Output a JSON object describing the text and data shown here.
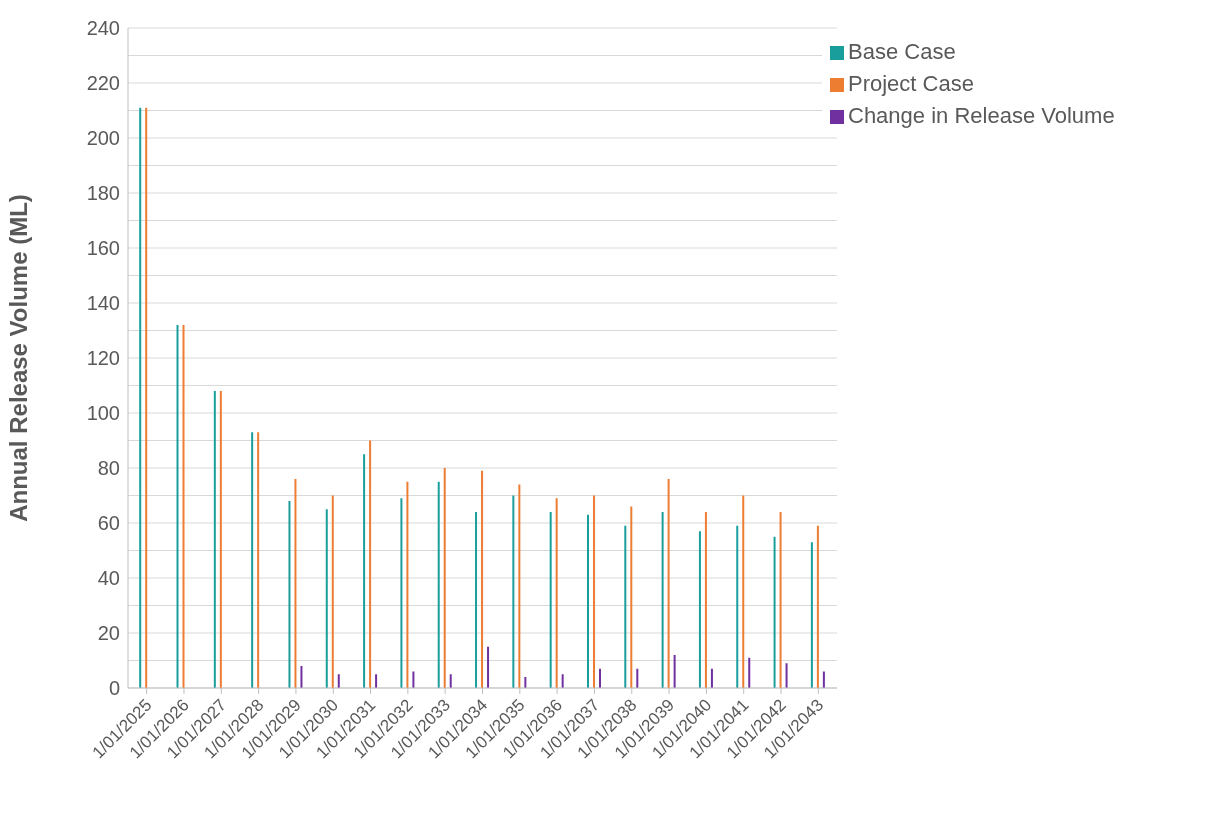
{
  "chart_data": {
    "type": "bar",
    "ylabel": "Annual Release Volume (ML)",
    "categories": [
      "1/01/2025",
      "1/01/2026",
      "1/01/2027",
      "1/01/2028",
      "1/01/2029",
      "1/01/2030",
      "1/01/2031",
      "1/01/2032",
      "1/01/2033",
      "1/01/2034",
      "1/01/2035",
      "1/01/2036",
      "1/01/2037",
      "1/01/2038",
      "1/01/2039",
      "1/01/2040",
      "1/01/2041",
      "1/01/2042",
      "1/01/2043"
    ],
    "series": [
      {
        "name": "Base Case",
        "color": "#1a9e9c",
        "values": [
          211,
          132,
          108,
          93,
          68,
          65,
          85,
          69,
          75,
          64,
          70,
          64,
          63,
          59,
          64,
          57,
          59,
          55,
          53
        ]
      },
      {
        "name": "Project Case",
        "color": "#ed7d31",
        "values": [
          211,
          132,
          108,
          93,
          76,
          70,
          90,
          75,
          80,
          79,
          74,
          69,
          70,
          66,
          76,
          64,
          70,
          64,
          59
        ]
      },
      {
        "name": "Change in Release Volume",
        "color": "#7030a0",
        "values": [
          0,
          0,
          0,
          0,
          8,
          5,
          5,
          6,
          5,
          15,
          4,
          5,
          7,
          7,
          12,
          7,
          11,
          9,
          6
        ]
      }
    ],
    "ylim": [
      0,
      240
    ],
    "yticks": [
      0,
      {
        "value": 10,
        "label": null
      },
      20,
      {
        "value": 30,
        "label": null
      },
      40,
      {
        "value": 50,
        "label": null
      },
      60,
      {
        "value": 70,
        "label": null
      },
      80,
      {
        "value": 90,
        "label": null
      },
      100,
      {
        "value": 110,
        "label": null
      },
      120,
      {
        "value": 130,
        "label": null
      },
      140,
      {
        "value": 150,
        "label": null
      },
      160,
      {
        "value": 170,
        "label": null
      },
      180,
      {
        "value": 190,
        "label": null
      },
      200,
      {
        "value": 210,
        "label": null
      },
      220,
      {
        "value": 230,
        "label": null
      },
      240
    ],
    "grid": "y",
    "legend": "top right"
  }
}
